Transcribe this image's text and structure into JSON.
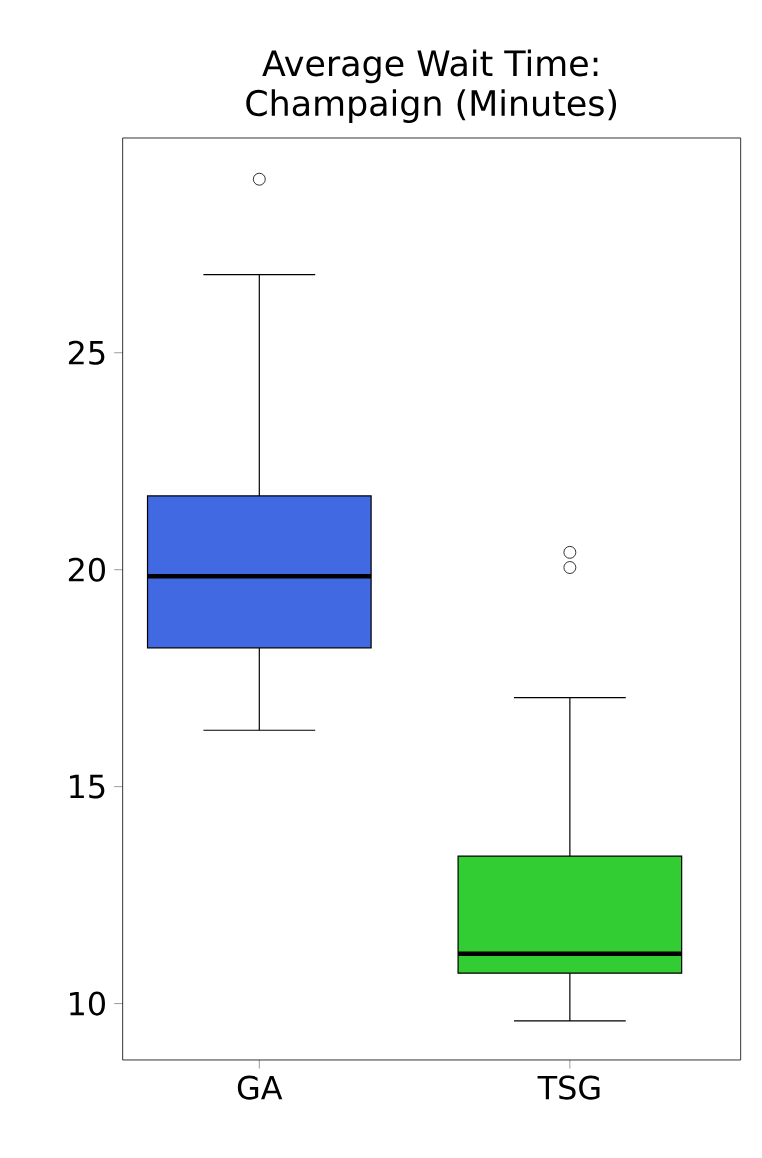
{
  "chart_data": {
    "type": "box",
    "title": "Average Wait Time:\nChampaign (Minutes)",
    "categories": [
      "GA",
      "TSG"
    ],
    "ylim": [
      8.7,
      29.95
    ],
    "yticks": [
      10,
      15,
      20,
      25
    ],
    "grid": false,
    "colors": [
      "#4169e1",
      "#32cd32"
    ],
    "boxes": [
      {
        "low": 16.3,
        "q1": 18.2,
        "median": 19.85,
        "q3": 21.7,
        "high": 26.8,
        "outliers": [
          29.0
        ]
      },
      {
        "low": 9.6,
        "q1": 10.7,
        "median": 11.15,
        "q3": 13.4,
        "high": 17.05,
        "outliers": [
          20.4,
          20.05
        ]
      }
    ]
  }
}
